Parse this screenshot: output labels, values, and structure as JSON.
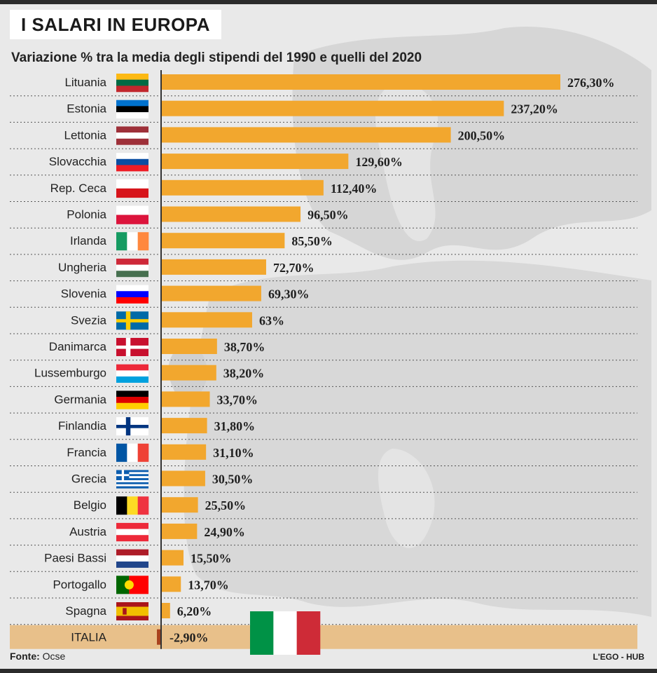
{
  "header": {
    "title": "I SALARI IN EUROPA",
    "subtitle": "Variazione % tra la media degli stipendi del 1990 e quelli del  2020"
  },
  "footer": {
    "source_label": "Fonte:",
    "source_value": "Ocse",
    "brand": "L'EGO - HUB"
  },
  "colors": {
    "bar": "#f2a72e",
    "highlight_row": "#e8c08a",
    "axis": "#333333"
  },
  "chart_data": {
    "type": "bar",
    "orientation": "horizontal",
    "title": "I SALARI IN EUROPA",
    "subtitle": "Variazione % tra la media degli stipendi del 1990 e quelli del  2020",
    "categories": [
      "Lituania",
      "Estonia",
      "Lettonia",
      "Slovacchia",
      "Rep. Ceca",
      "Polonia",
      "Irlanda",
      "Ungheria",
      "Slovenia",
      "Svezia",
      "Danimarca",
      "Lussemburgo",
      "Germania",
      "Finlandia",
      "Francia",
      "Grecia",
      "Belgio",
      "Austria",
      "Paesi Bassi",
      "Portogallo",
      "Spagna",
      "ITALIA"
    ],
    "values": [
      276.3,
      237.2,
      200.5,
      129.6,
      112.4,
      96.5,
      85.5,
      72.7,
      69.3,
      63,
      38.7,
      38.2,
      33.7,
      31.8,
      31.1,
      30.5,
      25.5,
      24.9,
      15.5,
      13.7,
      6.2,
      -2.9
    ],
    "value_labels": [
      "276,30%",
      "237,20%",
      "200,50%",
      "129,60%",
      "112,40%",
      "96,50%",
      "85,50%",
      "72,70%",
      "69,30%",
      "63%",
      "38,70%",
      "38,20%",
      "33,70%",
      "31,80%",
      "31,10%",
      "30,50%",
      "25,50%",
      "24,90%",
      "15,50%",
      "13,70%",
      "6,20%",
      "-2,90%"
    ],
    "highlight": "ITALIA",
    "flags": [
      "lithuania-flag-icon",
      "estonia-flag-icon",
      "latvia-flag-icon",
      "slovakia-flag-icon",
      "czech-flag-icon",
      "poland-flag-icon",
      "ireland-flag-icon",
      "hungary-flag-icon",
      "slovenia-flag-icon",
      "sweden-flag-icon",
      "denmark-flag-icon",
      "luxembourg-flag-icon",
      "germany-flag-icon",
      "finland-flag-icon",
      "france-flag-icon",
      "greece-flag-icon",
      "belgium-flag-icon",
      "austria-flag-icon",
      "netherlands-flag-icon",
      "portugal-flag-icon",
      "spain-flag-icon",
      "italy-flag-icon"
    ],
    "xlim": [
      -2.9,
      276.3
    ],
    "grid": false
  }
}
